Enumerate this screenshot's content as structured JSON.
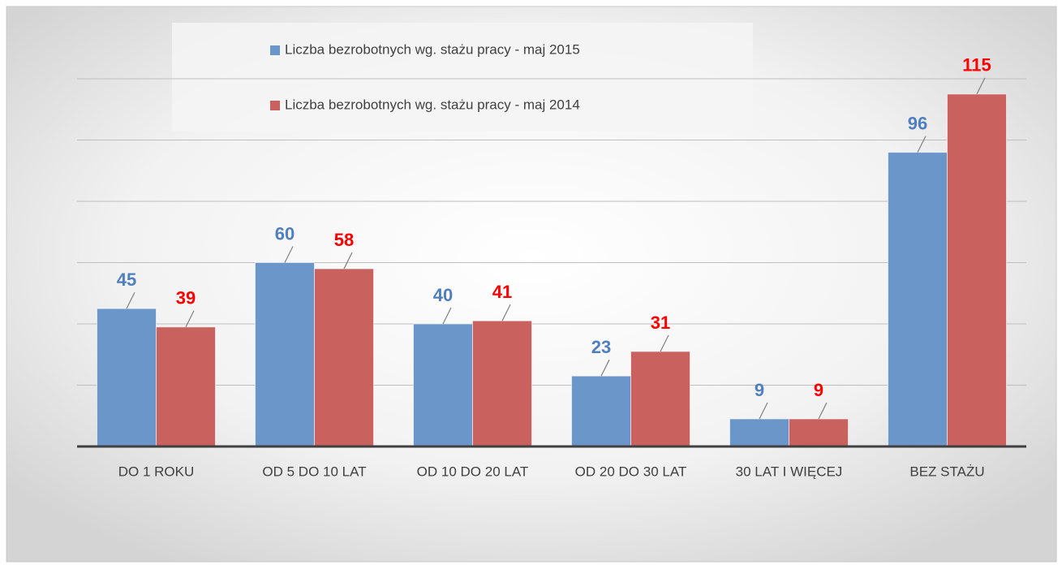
{
  "chart_data": {
    "type": "bar",
    "categories": [
      "DO 1 ROKU",
      "OD 5 DO 10 LAT",
      "OD 10 DO 20 LAT",
      "OD 20 DO 30 LAT",
      "30 LAT I WIĘCEJ",
      "BEZ STAŻU"
    ],
    "series": [
      {
        "name": "Liczba bezrobotnych wg. stażu pracy - maj 2015",
        "color": "#6b96c9",
        "label_color": "#4f7fbf",
        "values": [
          45,
          60,
          40,
          23,
          9,
          96
        ]
      },
      {
        "name": "Liczba bezrobotnych wg. stażu pracy - maj 2014",
        "color": "#c9615f",
        "label_color": "#ff0000",
        "values": [
          39,
          58,
          41,
          31,
          9,
          115
        ]
      }
    ],
    "ylim": [
      0,
      120
    ],
    "yticks": [
      0,
      20,
      40,
      60,
      80,
      100,
      120
    ],
    "grid": true,
    "legend": "top"
  }
}
